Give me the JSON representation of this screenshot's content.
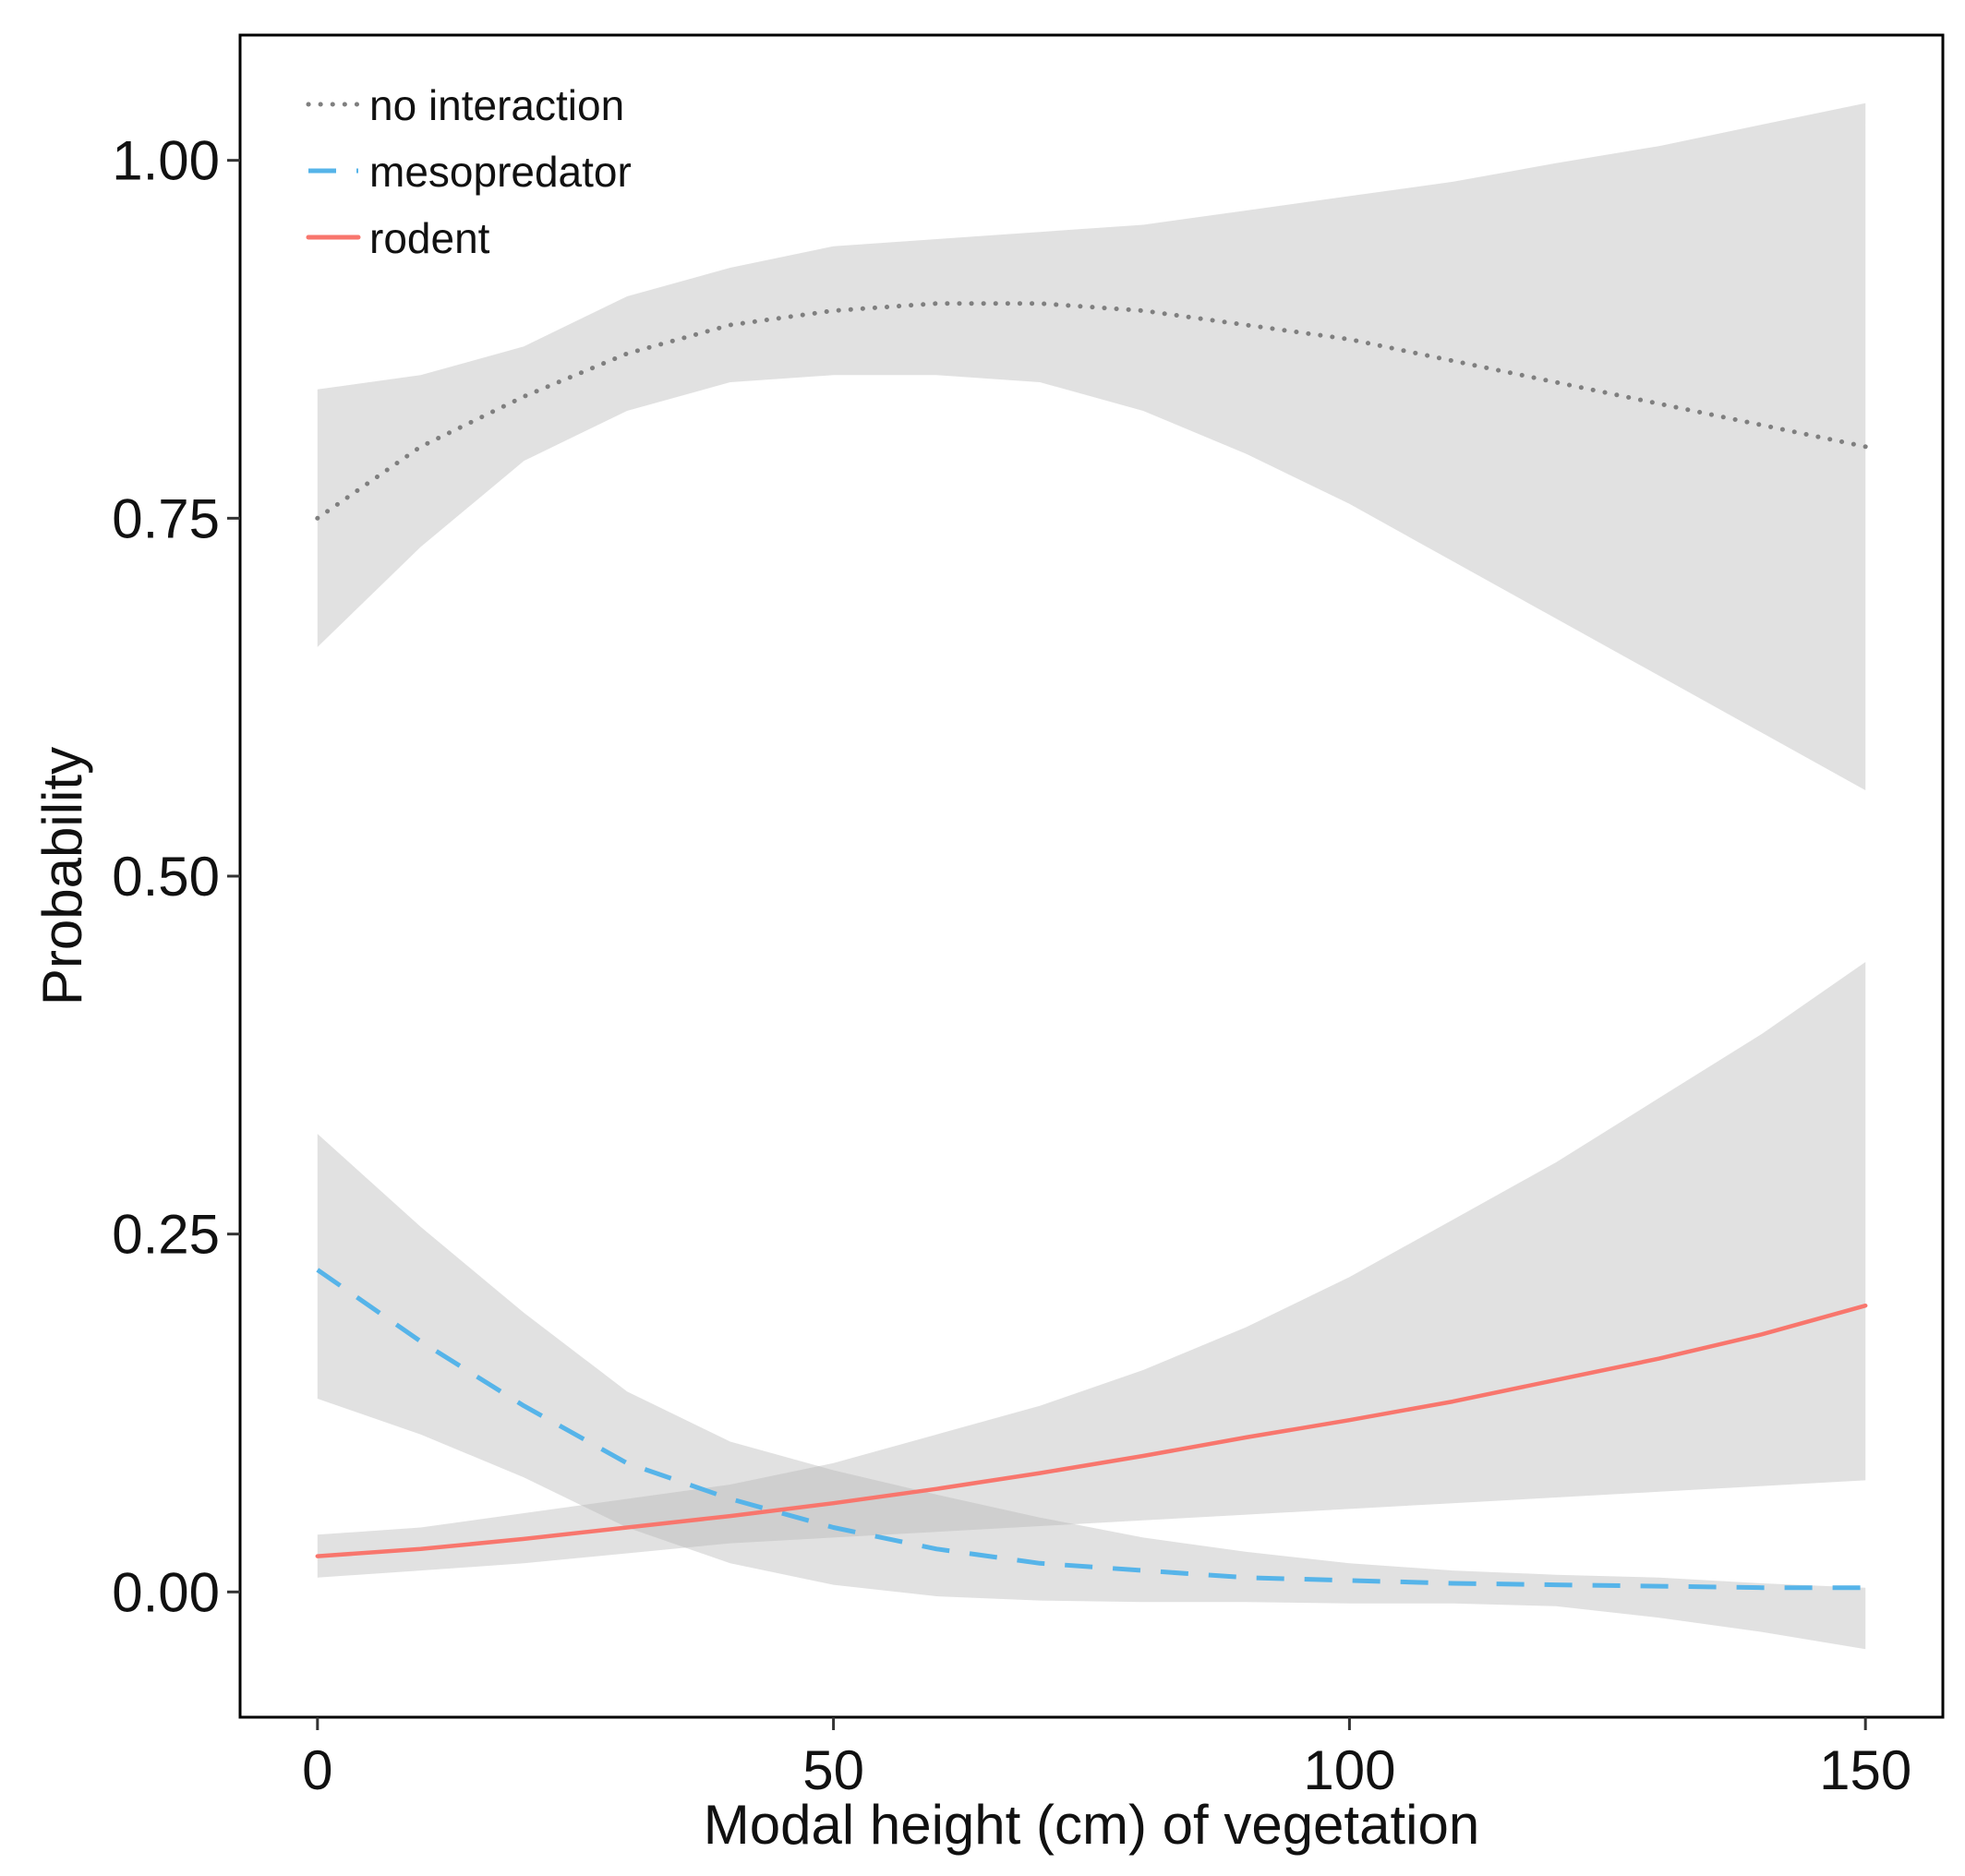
{
  "chart_data": {
    "type": "line",
    "title": "",
    "xlabel": "Modal height (cm) of vegetation",
    "ylabel": "Probability",
    "xlim": [
      -7.5,
      157.5
    ],
    "ylim": [
      -0.0875,
      1.0875
    ],
    "xticks": [
      0,
      50,
      100,
      150
    ],
    "xtick_labels": [
      "0",
      "50",
      "100",
      "150"
    ],
    "yticks": [
      0,
      0.25,
      0.5,
      0.75,
      1
    ],
    "ytick_labels": [
      "0.00",
      "0.25",
      "0.50",
      "0.75",
      "1.00"
    ],
    "grid": false,
    "legend_position": "top-left",
    "series": [
      {
        "name": "no interaction",
        "color": "#7f7f7f",
        "linestyle": "dotted",
        "x": [
          0,
          10,
          20,
          30,
          40,
          50,
          60,
          70,
          80,
          90,
          100,
          110,
          120,
          130,
          140,
          150
        ],
        "values": [
          0.75,
          0.8,
          0.835,
          0.865,
          0.885,
          0.895,
          0.9,
          0.9,
          0.895,
          0.885,
          0.875,
          0.86,
          0.845,
          0.83,
          0.815,
          0.8
        ],
        "ci_lower": [
          0.66,
          0.73,
          0.79,
          0.825,
          0.845,
          0.85,
          0.85,
          0.845,
          0.825,
          0.795,
          0.76,
          0.72,
          0.68,
          0.64,
          0.6,
          0.56
        ],
        "ci_upper": [
          0.84,
          0.85,
          0.87,
          0.905,
          0.925,
          0.94,
          0.945,
          0.95,
          0.955,
          0.965,
          0.975,
          0.985,
          0.998,
          1.01,
          1.025,
          1.04
        ]
      },
      {
        "name": "mesopredator",
        "color": "#56b4e9",
        "linestyle": "dashed",
        "x": [
          0,
          10,
          20,
          30,
          40,
          50,
          60,
          70,
          80,
          90,
          100,
          110,
          120,
          130,
          140,
          150
        ],
        "values": [
          0.225,
          0.175,
          0.13,
          0.09,
          0.065,
          0.045,
          0.03,
          0.02,
          0.015,
          0.01,
          0.008,
          0.006,
          0.005,
          0.004,
          0.003,
          0.003
        ],
        "ci_lower": [
          0.135,
          0.11,
          0.08,
          0.045,
          0.02,
          0.005,
          -0.003,
          -0.006,
          -0.007,
          -0.007,
          -0.008,
          -0.008,
          -0.01,
          -0.018,
          -0.028,
          -0.04
        ],
        "ci_upper": [
          0.32,
          0.255,
          0.195,
          0.14,
          0.105,
          0.085,
          0.068,
          0.052,
          0.038,
          0.028,
          0.02,
          0.015,
          0.012,
          0.01,
          0.006,
          0.003
        ]
      },
      {
        "name": "rodent",
        "color": "#f8766d",
        "linestyle": "solid",
        "x": [
          0,
          10,
          20,
          30,
          40,
          50,
          60,
          70,
          80,
          90,
          100,
          110,
          120,
          130,
          140,
          150
        ],
        "values": [
          0.025,
          0.03,
          0.037,
          0.045,
          0.053,
          0.062,
          0.072,
          0.083,
          0.095,
          0.108,
          0.12,
          0.133,
          0.148,
          0.163,
          0.18,
          0.2
        ],
        "ci_lower": [
          0.01,
          0.015,
          0.02,
          0.027,
          0.034,
          0.038,
          0.042,
          0.046,
          0.05,
          0.054,
          0.058,
          0.062,
          0.066,
          0.07,
          0.074,
          0.078
        ],
        "ci_upper": [
          0.04,
          0.045,
          0.055,
          0.065,
          0.075,
          0.09,
          0.11,
          0.13,
          0.155,
          0.185,
          0.22,
          0.26,
          0.3,
          0.345,
          0.39,
          0.44
        ]
      }
    ]
  }
}
